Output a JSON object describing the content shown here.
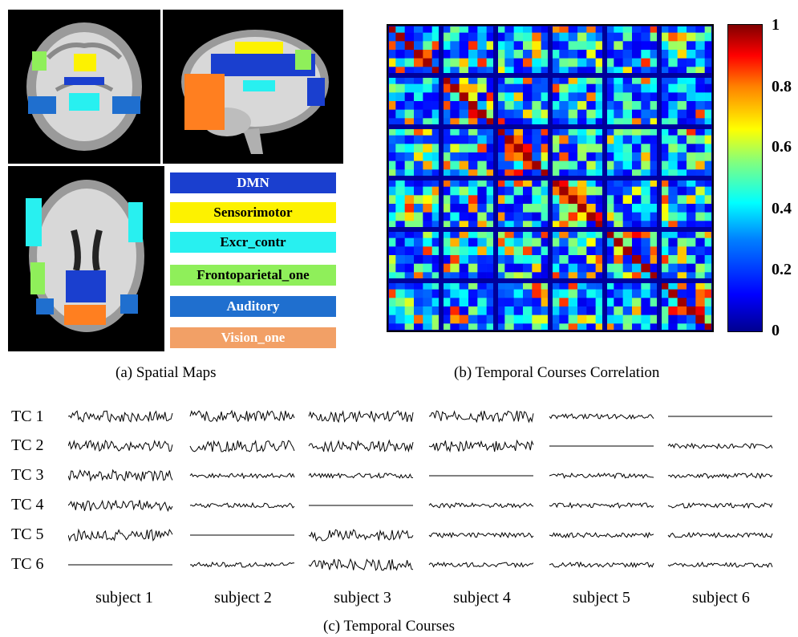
{
  "panel_a": {
    "caption": "(a) Spatial Maps",
    "legend": [
      {
        "label": "DMN",
        "color": "#1a3fcf",
        "text_color": "#ffffff"
      },
      {
        "label": "Sensorimotor",
        "color": "#fdf200",
        "text_color": "#000000"
      },
      {
        "label": "Excr_contr",
        "color": "#28f0f0",
        "text_color": "#000000"
      },
      {
        "label": "Frontoparietal_one",
        "color": "#8fef5a",
        "text_color": "#000000"
      },
      {
        "label": "Auditory",
        "color": "#1f6fcf",
        "text_color": "#ffffff"
      },
      {
        "label": "Vision_one",
        "color": "#f2a066",
        "text_color": "#ffffff"
      }
    ]
  },
  "panel_b": {
    "caption": "(b) Temporal Courses Correlation",
    "colorbar_ticks": [
      "1",
      "0.8",
      "0.6",
      "0.4",
      "0.2",
      "0"
    ]
  },
  "panel_c": {
    "caption": "(c) Temporal Courses",
    "rows": [
      "TC 1",
      "TC 2",
      "TC 3",
      "TC 4",
      "TC 5",
      "TC 6"
    ],
    "subjects": [
      "subject 1",
      "subject 2",
      "subject 3",
      "subject 4",
      "subject 5",
      "subject 6"
    ]
  },
  "chart_data": {
    "type": "heatmap",
    "title": "(b) Temporal Courses Correlation",
    "blocks": 6,
    "cells_per_block": 6,
    "colorbar_range": [
      0,
      1
    ],
    "colorbar_ticks": [
      0,
      0.2,
      0.4,
      0.6,
      0.8,
      1
    ],
    "diagonal_value": 1
  }
}
